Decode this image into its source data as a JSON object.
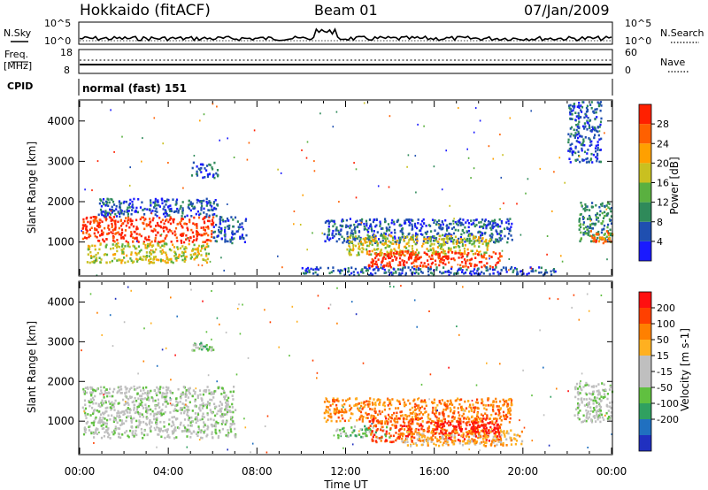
{
  "header": {
    "title": "Hokkaido (fitACF)",
    "beam": "Beam 01",
    "date": "07/Jan/2009"
  },
  "nsky_panel": {
    "left_label": "N.Sky",
    "right_label": "N.Search",
    "tick_top": "10^5",
    "tick_bottom": "10^0"
  },
  "freq_panel": {
    "left_label_line1": "Freq.",
    "left_label_line2": "[MHz]",
    "left_ticks": [
      "18",
      "8"
    ],
    "right_label": "Nave",
    "right_ticks": [
      "60",
      "0"
    ]
  },
  "cpid_panel": {
    "label": "CPID",
    "program": "normal (fast) 151"
  },
  "x_axis": {
    "label": "Time UT",
    "ticks": [
      "00:00",
      "04:00",
      "08:00",
      "12:00",
      "16:00",
      "20:00",
      "00:00"
    ]
  },
  "chart_data": [
    {
      "type": "heatmap",
      "title": "",
      "xlabel": "",
      "ylabel": "Slant Range [km]",
      "xlim_hours": [
        0,
        24
      ],
      "ylim_km": [
        180,
        4500
      ],
      "yticks": [
        "1000",
        "2000",
        "3000",
        "4000"
      ],
      "colorbar": {
        "label": "Power [dB]",
        "ticks": [
          "4",
          "8",
          "12",
          "16",
          "20",
          "24",
          "28"
        ],
        "range": [
          0,
          30
        ],
        "colors": [
          "#1a1aff",
          "#1f4fb0",
          "#2f8a5a",
          "#5ab040",
          "#c9c020",
          "#ffa000",
          "#ff6000",
          "#ff2000"
        ]
      },
      "regions": [
        {
          "t": [
            0.1,
            6.0
          ],
          "r": [
            1000,
            1650
          ],
          "level": 7
        },
        {
          "t": [
            0.3,
            5.8
          ],
          "r": [
            500,
            1000
          ],
          "level": 4
        },
        {
          "t": [
            0.8,
            6.2
          ],
          "r": [
            1650,
            2100
          ],
          "level": 1
        },
        {
          "t": [
            6.0,
            7.5
          ],
          "r": [
            1000,
            1650
          ],
          "level": 1
        },
        {
          "t": [
            5.0,
            6.2
          ],
          "r": [
            2600,
            3000
          ],
          "level": 1
        },
        {
          "t": [
            11.0,
            19.5
          ],
          "r": [
            1000,
            1600
          ],
          "level": 1
        },
        {
          "t": [
            12.0,
            18.5
          ],
          "r": [
            700,
            1200
          ],
          "level": 4
        },
        {
          "t": [
            13.0,
            19.0
          ],
          "r": [
            400,
            800
          ],
          "level": 7
        },
        {
          "t": [
            10.0,
            21.5
          ],
          "r": [
            200,
            400
          ],
          "level": 1
        },
        {
          "t": [
            22.5,
            24.0
          ],
          "r": [
            1000,
            2000
          ],
          "level": 2
        },
        {
          "t": [
            23.0,
            24.0
          ],
          "r": [
            1000,
            1300
          ],
          "level": 6
        },
        {
          "t": [
            22.0,
            23.5
          ],
          "r": [
            3000,
            4500
          ],
          "level": 1
        }
      ]
    },
    {
      "type": "heatmap",
      "title": "",
      "xlabel": "Time UT",
      "ylabel": "Slant Range [km]",
      "xlim_hours": [
        0,
        24
      ],
      "ylim_km": [
        180,
        4500
      ],
      "yticks": [
        "1000",
        "2000",
        "3000",
        "4000"
      ],
      "colorbar": {
        "label": "Velocity [m s-1]",
        "ticks": [
          "200",
          "100",
          "50",
          "15",
          "-15",
          "-50",
          "-100",
          "-200"
        ],
        "range": [
          -250,
          250
        ],
        "colors": [
          "#2030c0",
          "#2070c0",
          "#30a060",
          "#60c040",
          "#bfbfbf",
          "#bfbfbf",
          "#ffb020",
          "#ff8000",
          "#ff4000",
          "#ff1010"
        ]
      },
      "regions": [
        {
          "t": [
            0.1,
            7.0
          ],
          "r": [
            600,
            1900
          ],
          "level": 4
        },
        {
          "t": [
            5.0,
            6.0
          ],
          "r": [
            2800,
            3000
          ],
          "level": 3
        },
        {
          "t": [
            11.0,
            19.5
          ],
          "r": [
            1000,
            1600
          ],
          "level": 7
        },
        {
          "t": [
            11.5,
            14.0
          ],
          "r": [
            600,
            900
          ],
          "level": 3
        },
        {
          "t": [
            13.0,
            19.0
          ],
          "r": [
            500,
            1100
          ],
          "level": 8
        },
        {
          "t": [
            14.5,
            20.0
          ],
          "r": [
            400,
            800
          ],
          "level": 6
        },
        {
          "t": [
            16.0,
            19.0
          ],
          "r": [
            700,
            1000
          ],
          "level": 9
        },
        {
          "t": [
            22.3,
            24.0
          ],
          "r": [
            1000,
            2000
          ],
          "level": 4
        }
      ]
    }
  ]
}
